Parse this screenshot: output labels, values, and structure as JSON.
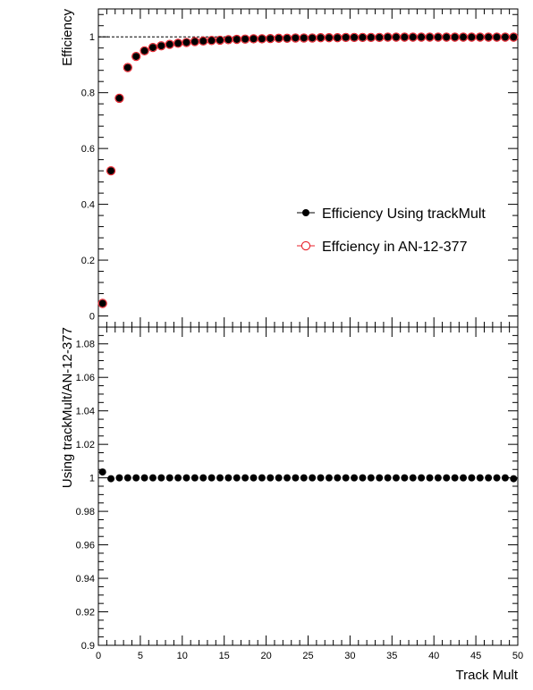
{
  "chart_data": [
    {
      "type": "scatter",
      "panel": "top",
      "ylabel": "Efficiency",
      "xlim": [
        0,
        50
      ],
      "ylim": [
        -0.04,
        1.1
      ],
      "yticks": [
        "0",
        "0.2",
        "0.4",
        "0.6",
        "0.8",
        "1"
      ],
      "reference_line": 1,
      "grid": false,
      "legend_position": "center-right",
      "series": [
        {
          "name": "Efficiency Using trackMult",
          "marker": "filled-circle",
          "color": "#000000",
          "x": [
            0.5,
            1.5,
            2.5,
            3.5,
            4.5,
            5.5,
            6.5,
            7.5,
            8.5,
            9.5,
            10.5,
            11.5,
            12.5,
            13.5,
            14.5,
            15.5,
            16.5,
            17.5,
            18.5,
            19.5,
            20.5,
            21.5,
            22.5,
            23.5,
            24.5,
            25.5,
            26.5,
            27.5,
            28.5,
            29.5,
            30.5,
            31.5,
            32.5,
            33.5,
            34.5,
            35.5,
            36.5,
            37.5,
            38.5,
            39.5,
            40.5,
            41.5,
            42.5,
            43.5,
            44.5,
            45.5,
            46.5,
            47.5,
            48.5,
            49.5
          ],
          "y": [
            0.045,
            0.52,
            0.78,
            0.89,
            0.93,
            0.95,
            0.962,
            0.968,
            0.973,
            0.977,
            0.98,
            0.983,
            0.985,
            0.987,
            0.988,
            0.99,
            0.991,
            0.992,
            0.993,
            0.993,
            0.994,
            0.995,
            0.995,
            0.996,
            0.996,
            0.996,
            0.997,
            0.997,
            0.997,
            0.998,
            0.998,
            0.998,
            0.998,
            0.998,
            0.999,
            0.999,
            0.999,
            0.999,
            0.999,
            0.999,
            0.999,
            0.999,
            0.999,
            0.999,
            0.999,
            0.999,
            0.999,
            0.999,
            0.999,
            0.999
          ]
        },
        {
          "name": "Effciency in AN-12-377",
          "marker": "open-circle",
          "color": "#e8202a",
          "x": [
            0.5,
            1.5,
            2.5,
            3.5,
            4.5,
            5.5,
            6.5,
            7.5,
            8.5,
            9.5,
            10.5,
            11.5,
            12.5,
            13.5,
            14.5,
            15.5,
            16.5,
            17.5,
            18.5,
            19.5,
            20.5,
            21.5,
            22.5,
            23.5,
            24.5,
            25.5,
            26.5,
            27.5,
            28.5,
            29.5,
            30.5,
            31.5,
            32.5,
            33.5,
            34.5,
            35.5,
            36.5,
            37.5,
            38.5,
            39.5,
            40.5,
            41.5,
            42.5,
            43.5,
            44.5,
            45.5,
            46.5,
            47.5,
            48.5,
            49.5
          ],
          "y": [
            0.045,
            0.52,
            0.78,
            0.89,
            0.93,
            0.95,
            0.962,
            0.968,
            0.973,
            0.977,
            0.98,
            0.983,
            0.985,
            0.987,
            0.988,
            0.99,
            0.991,
            0.992,
            0.993,
            0.993,
            0.994,
            0.995,
            0.995,
            0.996,
            0.996,
            0.996,
            0.997,
            0.997,
            0.997,
            0.998,
            0.998,
            0.998,
            0.998,
            0.998,
            0.999,
            0.999,
            0.999,
            0.999,
            0.999,
            0.999,
            0.999,
            0.999,
            0.999,
            0.999,
            0.999,
            0.999,
            0.999,
            0.999,
            0.999,
            0.999
          ]
        }
      ]
    },
    {
      "type": "scatter",
      "panel": "bottom",
      "xlabel": "Track Mult",
      "ylabel": "Using trackMult/AN-12-377",
      "xlim": [
        0,
        50
      ],
      "ylim": [
        0.9,
        1.09
      ],
      "xticks": [
        "0",
        "5",
        "10",
        "15",
        "20",
        "25",
        "30",
        "35",
        "40",
        "45",
        "50"
      ],
      "yticks": [
        "0.9",
        "0.92",
        "0.94",
        "0.96",
        "0.98",
        "1",
        "1.02",
        "1.04",
        "1.06",
        "1.08"
      ],
      "grid": false,
      "series": [
        {
          "marker": "filled-circle",
          "color": "#000000",
          "x": [
            0.5,
            1.5,
            2.5,
            3.5,
            4.5,
            5.5,
            6.5,
            7.5,
            8.5,
            9.5,
            10.5,
            11.5,
            12.5,
            13.5,
            14.5,
            15.5,
            16.5,
            17.5,
            18.5,
            19.5,
            20.5,
            21.5,
            22.5,
            23.5,
            24.5,
            25.5,
            26.5,
            27.5,
            28.5,
            29.5,
            30.5,
            31.5,
            32.5,
            33.5,
            34.5,
            35.5,
            36.5,
            37.5,
            38.5,
            39.5,
            40.5,
            41.5,
            42.5,
            43.5,
            44.5,
            45.5,
            46.5,
            47.5,
            48.5,
            49.5
          ],
          "y": [
            1.0035,
            0.9995,
            1.0,
            1.0,
            1.0,
            1.0,
            1.0,
            1.0,
            1.0,
            1.0,
            1.0,
            1.0,
            1.0,
            1.0,
            1.0,
            1.0,
            1.0,
            1.0,
            1.0,
            1.0,
            1.0,
            1.0,
            1.0,
            1.0,
            1.0,
            1.0,
            1.0,
            1.0,
            1.0,
            1.0,
            1.0,
            1.0,
            1.0,
            1.0,
            1.0,
            1.0,
            1.0,
            1.0,
            1.0,
            1.0,
            1.0,
            1.0,
            1.0,
            1.0,
            1.0,
            1.0,
            1.0,
            1.0,
            1.0,
            0.9995
          ]
        }
      ]
    }
  ]
}
